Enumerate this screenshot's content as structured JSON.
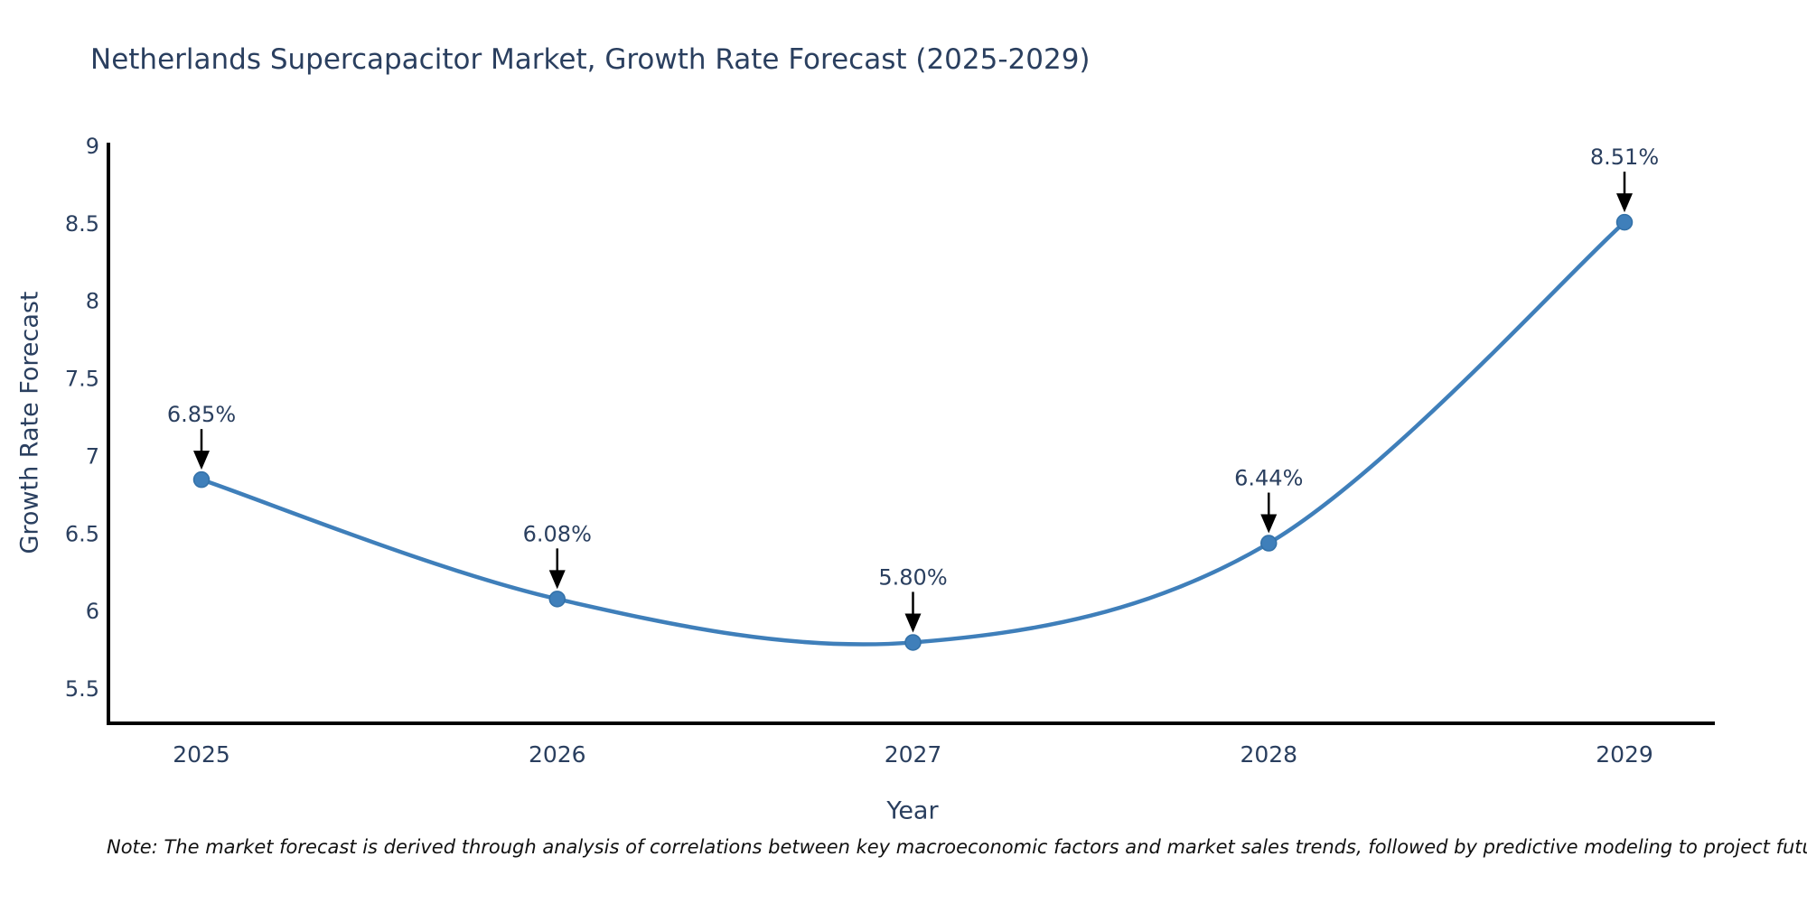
{
  "title": {
    "text": "Netherlands Supercapacitor Market, Growth Rate Forecast (2025-2029)",
    "color": "#2a3f5f"
  },
  "chart_data": {
    "type": "line",
    "title": "Netherlands Supercapacitor Market, Growth Rate Forecast (2025-2029)",
    "categories": [
      "2025",
      "2026",
      "2027",
      "2028",
      "2029"
    ],
    "values": [
      6.85,
      6.08,
      5.8,
      6.44,
      8.51
    ],
    "point_labels": [
      "6.85%",
      "6.08%",
      "5.80%",
      "6.44%",
      "8.51%"
    ],
    "xlabel": "Year",
    "ylabel": "Growth Rate Forecast",
    "y_ticks": [
      9,
      8.5,
      8,
      7.5,
      7,
      6.5,
      6,
      5.5
    ],
    "y_tick_labels": [
      "9",
      "8.5",
      "8",
      "7.5",
      "7",
      "6.5",
      "6",
      "5.5"
    ],
    "ylim": [
      5.28,
      9.01
    ],
    "line_shape": "spline",
    "grid": false,
    "legend": "none",
    "line_color": "#3f7fba",
    "marker_color": "#3f7fba",
    "marker_edge_color": "#3371a8",
    "axis_color": "#000000",
    "annotation_color": "#2a3f5f",
    "arrow_color": "#000000"
  },
  "footnote": {
    "text": "Note: The market forecast is derived through analysis of correlations between key macroeconomic factors and market sales trends, followed by predictive modeling to project future sales"
  }
}
